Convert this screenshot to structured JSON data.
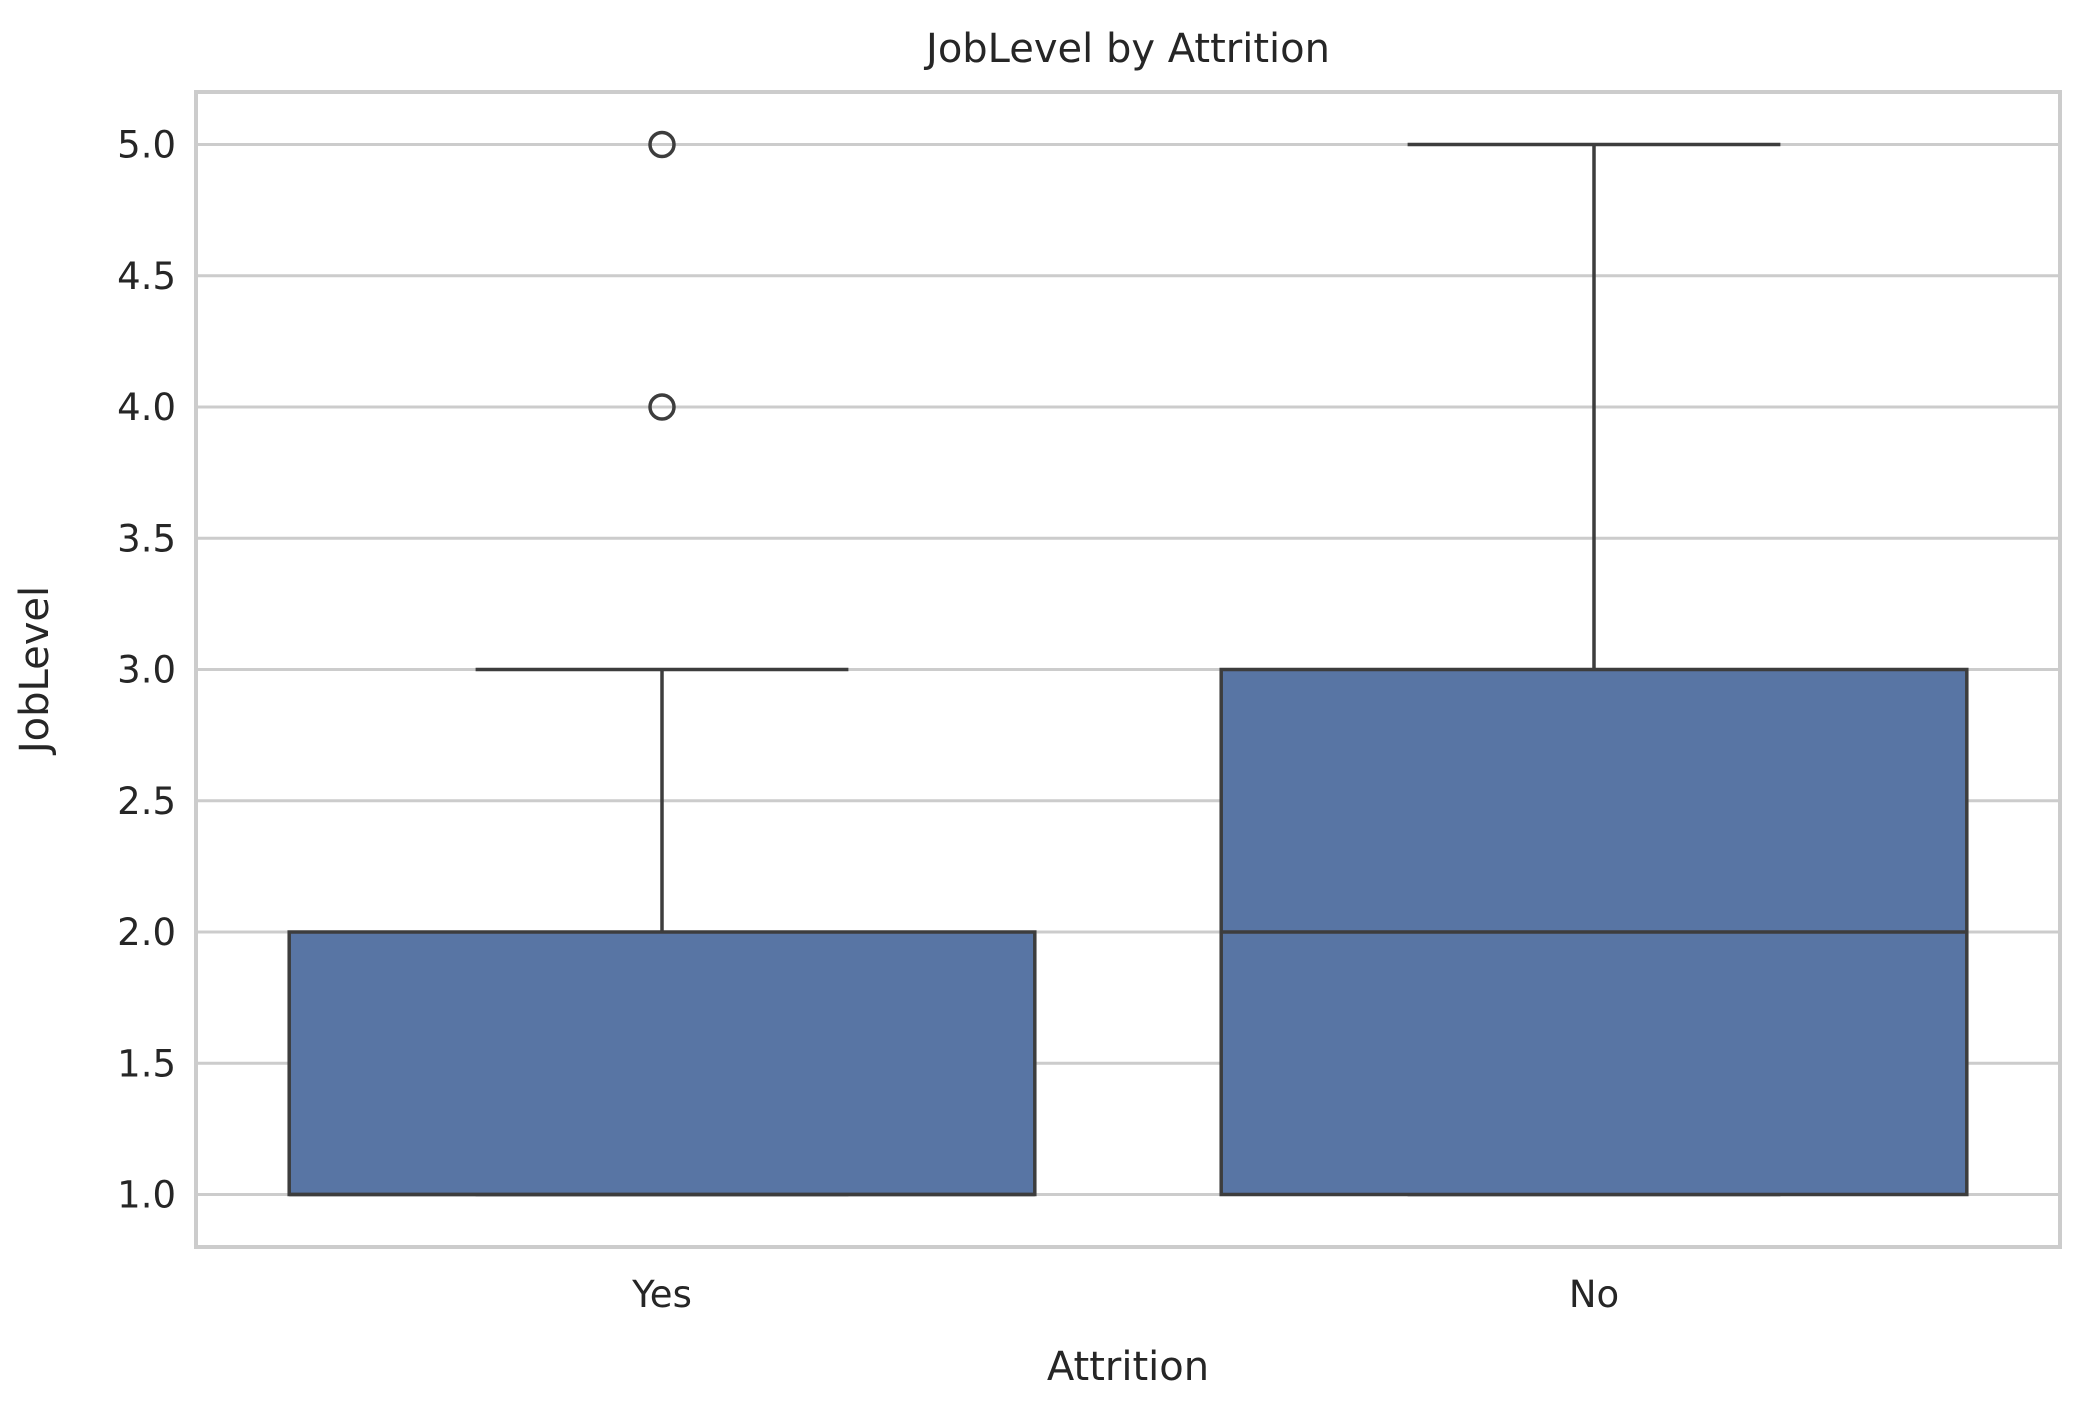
{
  "chart_data": {
    "type": "box",
    "title": "JobLevel by Attrition",
    "xlabel": "Attrition",
    "ylabel": "JobLevel",
    "ylim": [
      0.8,
      5.2
    ],
    "yticks": [
      1.0,
      1.5,
      2.0,
      2.5,
      3.0,
      3.5,
      4.0,
      4.5,
      5.0
    ],
    "ytick_labels": [
      "1.0",
      "1.5",
      "2.0",
      "2.5",
      "3.0",
      "3.5",
      "4.0",
      "4.5",
      "5.0"
    ],
    "categories": [
      "Yes",
      "No"
    ],
    "boxes": [
      {
        "category": "Yes",
        "whisker_low": 1.0,
        "q1": 1.0,
        "median": 1.0,
        "q3": 2.0,
        "whisker_high": 3.0,
        "outliers": [
          4.0,
          5.0
        ]
      },
      {
        "category": "No",
        "whisker_low": 1.0,
        "q1": 1.0,
        "median": 2.0,
        "q3": 3.0,
        "whisker_high": 5.0,
        "outliers": []
      }
    ],
    "grid": true,
    "colors": {
      "box_fill": "#5875a4",
      "line": "#3d3d3d",
      "grid": "#cccccc"
    }
  }
}
